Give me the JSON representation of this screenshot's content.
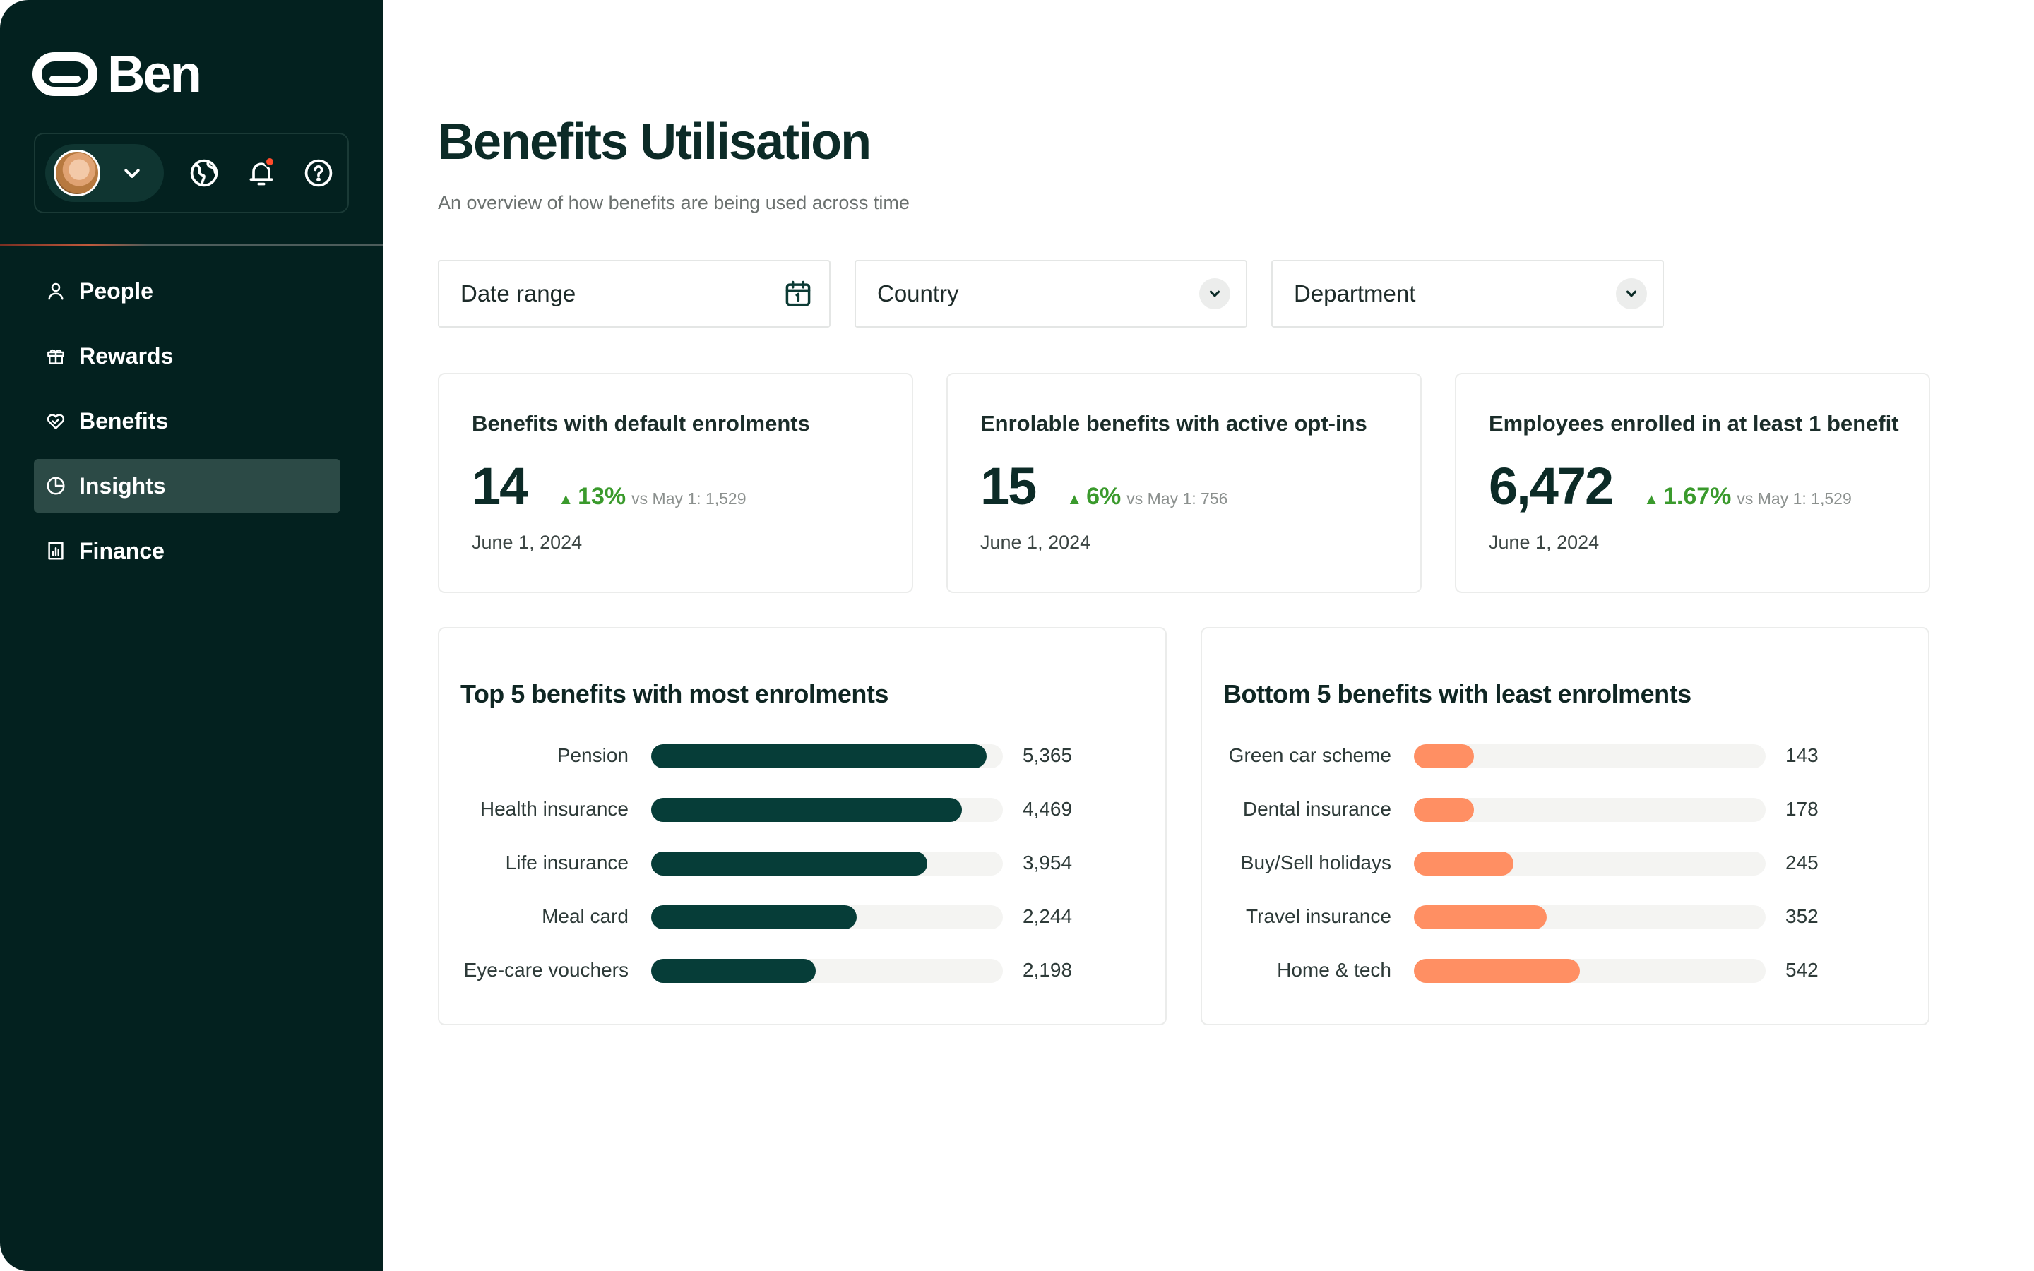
{
  "app": {
    "logo_text": "Ben"
  },
  "sidebar": {
    "items": [
      {
        "label": "People",
        "icon": "person-icon",
        "active": false
      },
      {
        "label": "Rewards",
        "icon": "gift-icon",
        "active": false
      },
      {
        "label": "Benefits",
        "icon": "heart-hand-icon",
        "active": false
      },
      {
        "label": "Insights",
        "icon": "pie-chart-icon",
        "active": true
      },
      {
        "label": "Finance",
        "icon": "invoice-icon",
        "active": false
      }
    ]
  },
  "header": {
    "title": "Benefits Utilisation",
    "subtitle": "An overview of how benefits are being used across time"
  },
  "filters": {
    "date_range": "Date range",
    "country": "Country",
    "department": "Department"
  },
  "stats": [
    {
      "title": "Benefits with default enrolments",
      "value": "14",
      "delta": "13%",
      "vs": "vs May 1: 1,529",
      "date": "June 1, 2024"
    },
    {
      "title": "Enrolable benefits with active opt-ins",
      "value": "15",
      "delta": "6%",
      "vs": "vs May 1: 756",
      "date": "June 1, 2024"
    },
    {
      "title": "Employees enrolled in at least 1 benefit",
      "value": "6,472",
      "delta": "1.67%",
      "vs": "vs May 1: 1,529",
      "date": "June 1, 2024"
    }
  ],
  "colors": {
    "sidebar_bg": "#03211f",
    "top_bar": "#063d38",
    "bottom_bar": "#ff8f63",
    "delta_up": "#3a9a2c"
  },
  "chart_data": [
    {
      "type": "bar",
      "title": "Top 5 benefits with most enrolments",
      "orientation": "horizontal",
      "categories": [
        "Pension",
        "Health insurance",
        "Life insurance",
        "Meal card",
        "Eye-care vouchers"
      ],
      "values": [
        5365,
        4469,
        3954,
        2244,
        2198
      ],
      "value_labels": [
        "5,365",
        "4,469",
        "3,954",
        "2,244",
        "2,198"
      ],
      "fills": [
        0.954,
        0.884,
        0.785,
        0.585,
        0.468
      ],
      "color": "#063d38"
    },
    {
      "type": "bar",
      "title": "Bottom 5 benefits with least enrolments",
      "orientation": "horizontal",
      "categories": [
        "Green car scheme",
        "Dental insurance",
        "Buy/Sell holidays",
        "Travel insurance",
        "Home & tech"
      ],
      "values": [
        143,
        178,
        245,
        352,
        542
      ],
      "value_labels": [
        "143",
        "178",
        "245",
        "352",
        "542"
      ],
      "fills": [
        0.17,
        0.17,
        0.284,
        0.378,
        0.472
      ],
      "color": "#ff8f63"
    }
  ]
}
